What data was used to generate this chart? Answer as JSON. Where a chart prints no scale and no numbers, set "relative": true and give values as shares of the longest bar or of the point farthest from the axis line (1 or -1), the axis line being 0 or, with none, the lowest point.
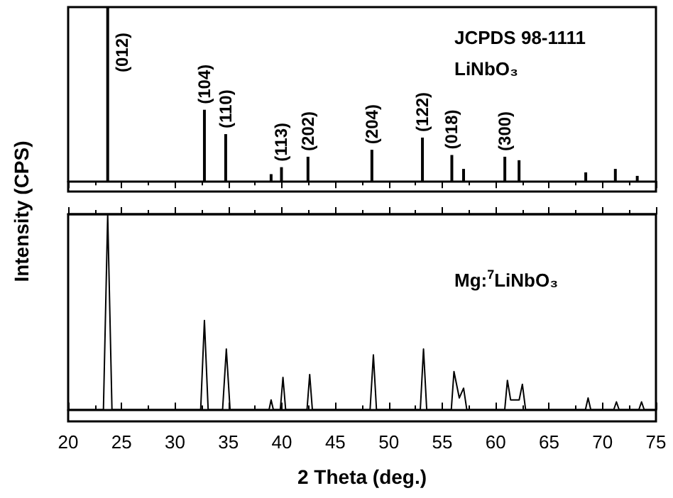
{
  "chart_data": [
    {
      "type": "bar",
      "relative": true,
      "ylabel": "Intensity (CPS)",
      "color": "#000000",
      "x": [
        23.7,
        32.75,
        34.74,
        38.99,
        39.96,
        42.44,
        48.42,
        53.15,
        55.9,
        57.0,
        60.86,
        62.19,
        68.43,
        71.2,
        73.25
      ],
      "values": [
        1,
        0.41,
        0.27,
        0.04,
        0.08,
        0.14,
        0.18,
        0.25,
        0.15,
        0.07,
        0.14,
        0.12,
        0.05,
        0.07,
        0.03
      ],
      "xlim": [
        20,
        75
      ],
      "xticks": [
        20,
        25,
        30,
        35,
        40,
        45,
        50,
        55,
        60,
        65,
        70,
        75
      ],
      "tick_labels": false,
      "grid": false,
      "annotations": [
        {
          "text": "(012)",
          "x": 23.7,
          "y": 1
        },
        {
          "text": "(104)",
          "x": 32.75,
          "y": 0.41
        },
        {
          "text": "(110)",
          "x": 34.74,
          "y": 0.27
        },
        {
          "text": "(113)",
          "x": 39.96,
          "y": 0.08
        },
        {
          "text": "(202)",
          "x": 42.44,
          "y": 0.14
        },
        {
          "text": "(204)",
          "x": 48.42,
          "y": 0.18
        },
        {
          "text": "(122)",
          "x": 53.15,
          "y": 0.25
        },
        {
          "text": "(018)",
          "x": 55.9,
          "y": 0.15
        },
        {
          "text": "(300)",
          "x": 60.86,
          "y": 0.14
        },
        "JCPDS 98-1111",
        "LiNbO₃"
      ]
    },
    {
      "type": "line",
      "relative": true,
      "xlabel": "2 Theta (deg.)",
      "color": "#000000",
      "marker": "none",
      "line_style": "solid",
      "x": [
        20,
        23.3,
        23.7,
        24.1,
        32.4,
        32.75,
        33.1,
        34.45,
        34.8,
        35.15,
        38.8,
        38.99,
        39.2,
        39.85,
        40.1,
        40.35,
        42.35,
        42.6,
        42.85,
        48.25,
        48.56,
        48.85,
        52.95,
        53.25,
        53.55,
        55.85,
        56.1,
        56.6,
        57.0,
        57.3,
        60.85,
        61.1,
        61.4,
        62.2,
        62.5,
        62.8,
        68.4,
        68.65,
        68.9,
        71.05,
        71.3,
        71.55,
        73.4,
        73.65,
        73.9,
        75
      ],
      "values": [
        0,
        0,
        1,
        0,
        0,
        0.456,
        0,
        0,
        0.31,
        0,
        0,
        0.05,
        0,
        0,
        0.165,
        0,
        0,
        0.18,
        0,
        0,
        0.28,
        0,
        0,
        0.31,
        0,
        0,
        0.195,
        0.06,
        0.11,
        0,
        0,
        0.15,
        0.05,
        0.05,
        0.13,
        0,
        0,
        0.06,
        0,
        0,
        0.04,
        0,
        0,
        0.04,
        0,
        0
      ],
      "xlim": [
        20,
        75
      ],
      "xticks": [
        20,
        25,
        30,
        35,
        40,
        45,
        50,
        55,
        60,
        65,
        70,
        75
      ],
      "tick_labels": "x",
      "grid": false,
      "annotations": [
        "Mg:$^{7}$LiNbO₃"
      ]
    }
  ]
}
